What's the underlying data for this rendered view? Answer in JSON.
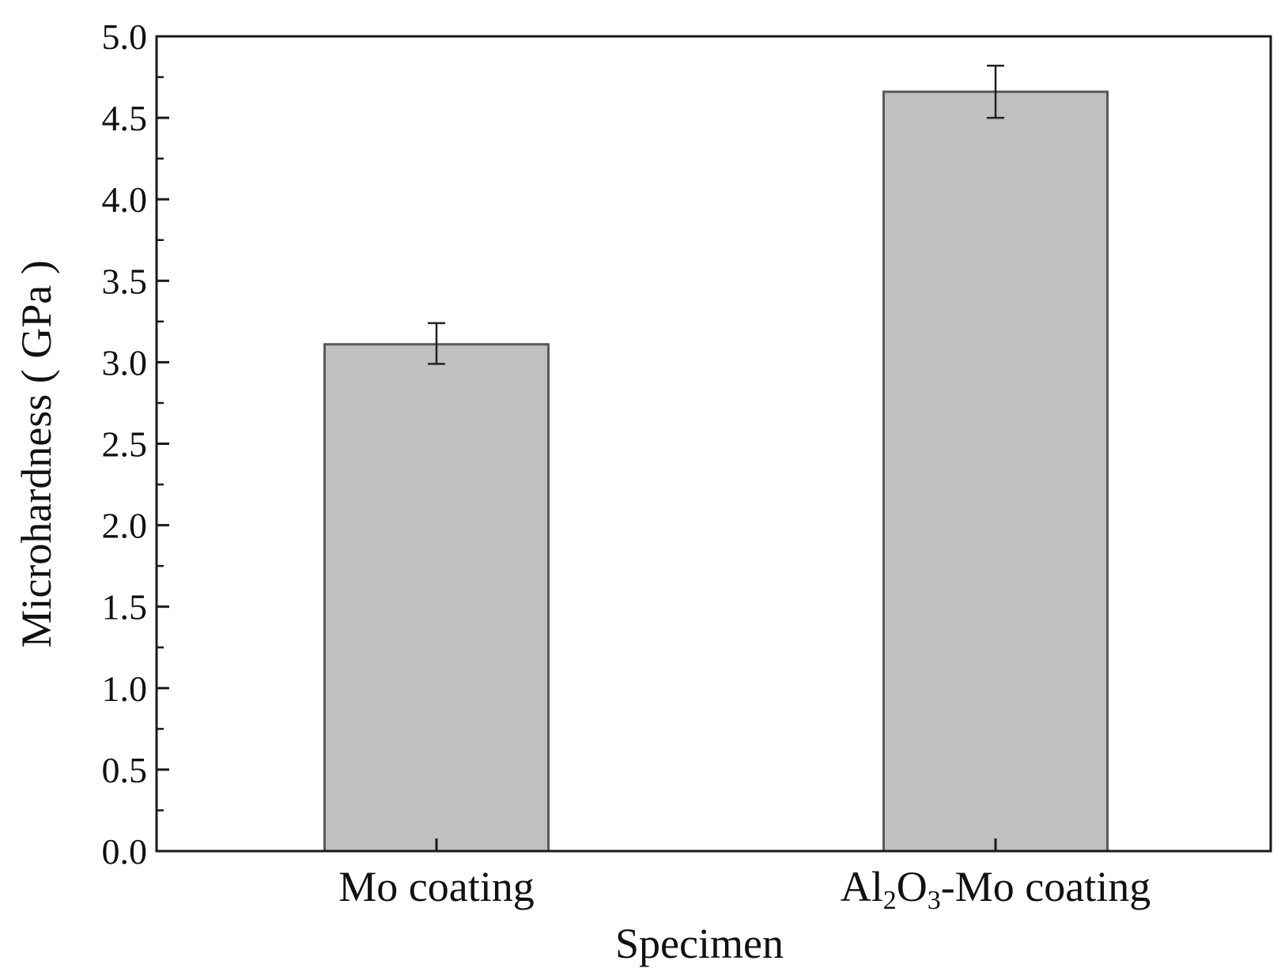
{
  "chart_data": {
    "type": "bar",
    "title": "",
    "xlabel": "Specimen",
    "ylabel": "Microhardness ( GPa )",
    "categories": [
      {
        "label": "Mo coating",
        "parts": [
          {
            "text": "Mo coating"
          }
        ]
      },
      {
        "label": "Al2O3-Mo coating",
        "parts": [
          {
            "text": "Al"
          },
          {
            "text": "2",
            "sub": true
          },
          {
            "text": "O"
          },
          {
            "text": "3",
            "sub": true
          },
          {
            "text": "-Mo coating"
          }
        ]
      }
    ],
    "values": [
      3.11,
      4.66
    ],
    "error_bars": [
      {
        "low": 2.99,
        "high": 3.24
      },
      {
        "low": 4.5,
        "high": 4.82
      }
    ],
    "ylim": [
      0,
      5.0
    ],
    "y_ticks": [
      "0.0",
      "0.5",
      "1.0",
      "1.5",
      "2.0",
      "2.5",
      "3.0",
      "3.5",
      "4.0",
      "4.5",
      "5.0"
    ],
    "y_minor_step": 0.25,
    "grid": false,
    "bar_color": "#c0c0c0",
    "bar_edge_color": "#595959",
    "axis_color": "#1a1a1a"
  }
}
